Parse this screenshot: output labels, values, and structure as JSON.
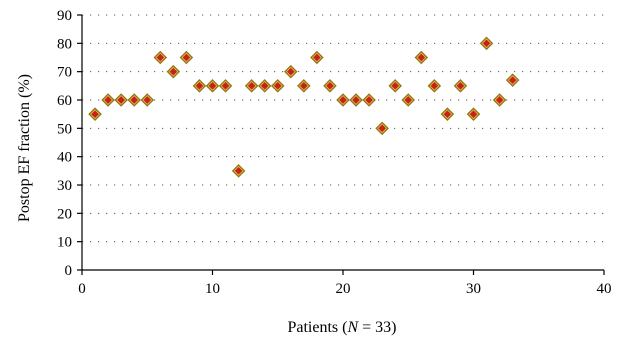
{
  "chart_data": {
    "type": "scatter",
    "title": "",
    "xlabel_prefix": "Patients (",
    "xlabel_var": "N",
    "xlabel_suffix": " = 33)",
    "ylabel": "Postop EF fraction (%)",
    "xlim": [
      0,
      40
    ],
    "ylim": [
      0,
      90
    ],
    "xticks": [
      0,
      10,
      20,
      30,
      40
    ],
    "yticks": [
      0,
      10,
      20,
      30,
      40,
      50,
      60,
      70,
      80,
      90
    ],
    "grid": "horizontal-dotted",
    "legend": "none",
    "marker": "diamond",
    "marker_fill": "#c8201e",
    "marker_edge": "#d8c23a",
    "series": [
      {
        "x": [
          1,
          2,
          3,
          4,
          5,
          6,
          7,
          8,
          9,
          10,
          11,
          12,
          13,
          14,
          15,
          16,
          17,
          18,
          19,
          20,
          21,
          22,
          23,
          24,
          25,
          26,
          27,
          28,
          29,
          30,
          31,
          32,
          33
        ],
        "y": [
          55,
          60,
          60,
          60,
          60,
          75,
          70,
          75,
          65,
          65,
          65,
          35,
          65,
          65,
          65,
          70,
          65,
          75,
          65,
          60,
          60,
          60,
          50,
          65,
          60,
          75,
          65,
          55,
          65,
          55,
          80,
          60,
          67
        ]
      }
    ]
  }
}
